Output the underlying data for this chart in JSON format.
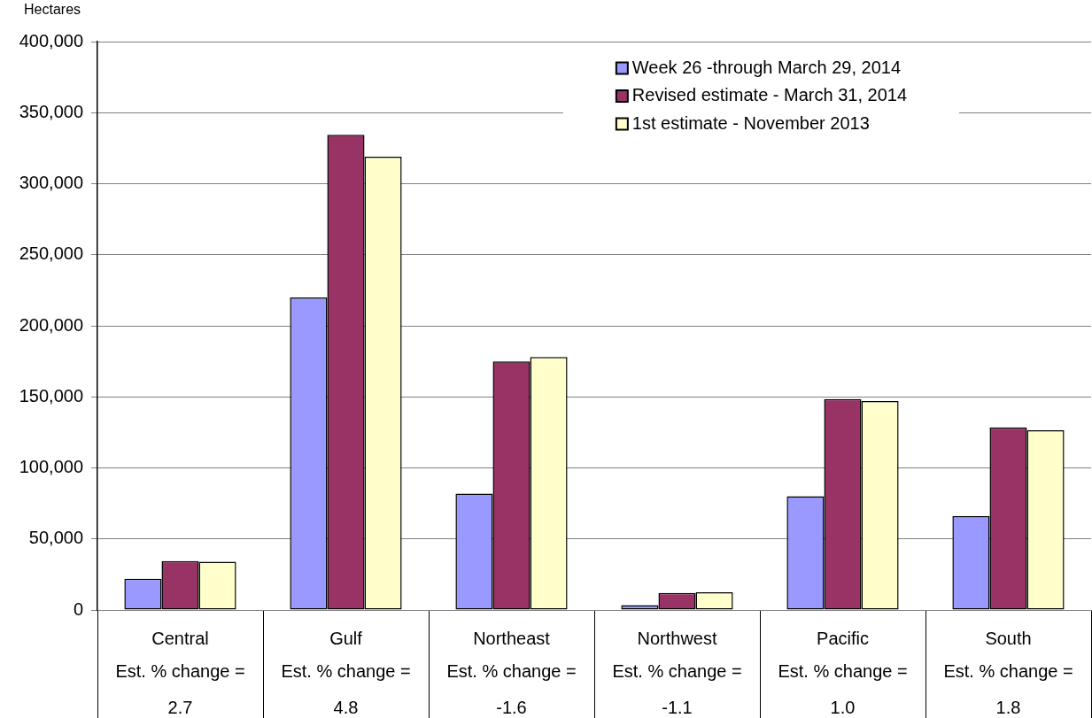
{
  "chart_data": {
    "type": "bar",
    "ylabel": "Hectares",
    "categories": [
      "Central",
      "Gulf",
      "Northeast",
      "Northwest",
      "Pacific",
      "South"
    ],
    "series": [
      {
        "name": "Week 26 -through March 29, 2014",
        "color": "#9999ff",
        "values": [
          22000,
          220000,
          82000,
          3500,
          80000,
          66000
        ]
      },
      {
        "name": "Revised estimate - March 31, 2014",
        "color": "#993366",
        "values": [
          34500,
          334500,
          175000,
          12000,
          148500,
          128500
        ]
      },
      {
        "name": "1st estimate - November 2013",
        "color": "#ffffcc",
        "values": [
          34000,
          319000,
          178000,
          12500,
          147000,
          126500
        ]
      }
    ],
    "ylim": [
      0,
      400000
    ],
    "yticks": [
      {
        "value": 0,
        "label": "0"
      },
      {
        "value": 50000,
        "label": "50,000"
      },
      {
        "value": 100000,
        "label": "100,000"
      },
      {
        "value": 150000,
        "label": "150,000"
      },
      {
        "value": 200000,
        "label": "200,000"
      },
      {
        "value": 250000,
        "label": "250,000"
      },
      {
        "value": 300000,
        "label": "300,000"
      },
      {
        "value": 350000,
        "label": "350,000"
      },
      {
        "value": 400000,
        "label": "400,000"
      }
    ],
    "grid": "y",
    "legend": "top right",
    "annotations": [
      "Est. % change =",
      "2.7",
      "Est. % change =",
      "4.8",
      "Est. % change =",
      "-1.6",
      "Est. % change =",
      "-1.1",
      "Est. % change =",
      "1.0",
      "Est. % change =",
      "1.8"
    ]
  }
}
